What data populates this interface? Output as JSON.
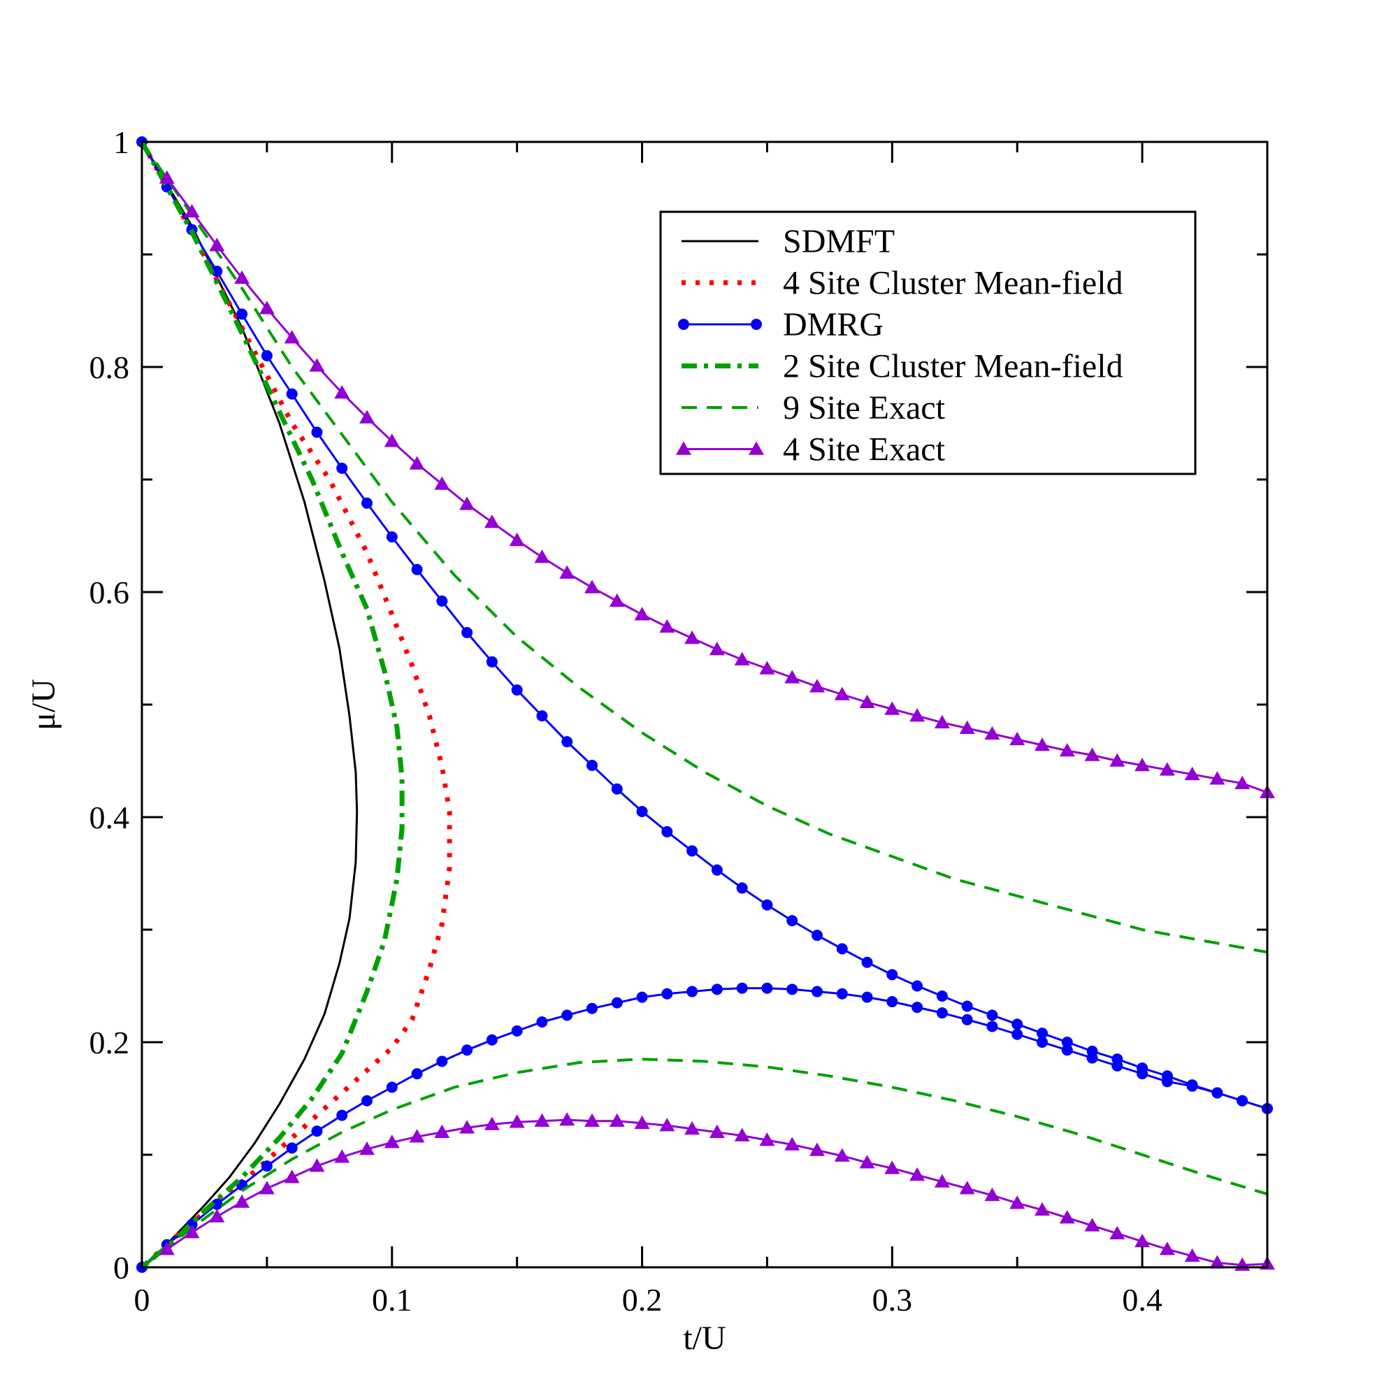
{
  "chart_data": {
    "type": "line",
    "title": "",
    "xlabel": "t/U",
    "ylabel": "μ/U",
    "xlim": [
      0,
      0.45
    ],
    "ylim": [
      0,
      1
    ],
    "xticks": [
      {
        "value": 0,
        "label": "0"
      },
      {
        "value": 0.1,
        "label": "0.1"
      },
      {
        "value": 0.2,
        "label": "0.2"
      },
      {
        "value": 0.3,
        "label": "0.3"
      },
      {
        "value": 0.4,
        "label": "0.4"
      }
    ],
    "yticks": [
      {
        "value": 0,
        "label": "0"
      },
      {
        "value": 0.2,
        "label": "0.2"
      },
      {
        "value": 0.4,
        "label": "0.4"
      },
      {
        "value": 0.6,
        "label": "0.6"
      },
      {
        "value": 0.8,
        "label": "0.8"
      },
      {
        "value": 1,
        "label": "1"
      }
    ],
    "grid": false,
    "legend_position": "top-right",
    "series": [
      {
        "name": "SDMFT",
        "style": "solid",
        "color": "#000000",
        "marker": "none",
        "branches": [
          {
            "x": [
              0,
              0.02,
              0.04,
              0.055,
              0.065,
              0.073,
              0.079,
              0.083,
              0.0855,
              0.086,
              0.0855,
              0.083,
              0.079,
              0.073,
              0.065,
              0.055,
              0.045,
              0.035,
              0.025,
              0.015,
              0.008,
              0
            ],
            "y": [
              1,
              0.925,
              0.835,
              0.75,
              0.68,
              0.61,
              0.55,
              0.49,
              0.44,
              0.405,
              0.36,
              0.31,
              0.27,
              0.225,
              0.185,
              0.145,
              0.11,
              0.08,
              0.055,
              0.032,
              0.016,
              0
            ]
          }
        ]
      },
      {
        "name": "4 Site Cluster Mean-field",
        "style": "dotted",
        "color": "#ff0000",
        "marker": "none",
        "branches": [
          {
            "x": [
              0,
              0.02,
              0.04,
              0.06,
              0.075,
              0.09,
              0.1,
              0.108,
              0.115,
              0.12,
              0.123,
              0.123,
              0.12,
              0.115,
              0.108,
              0.1,
              0.09,
              0.075,
              0.06,
              0.045,
              0.03,
              0.015,
              0
            ],
            "y": [
              1,
              0.92,
              0.835,
              0.75,
              0.7,
              0.635,
              0.58,
              0.535,
              0.49,
              0.445,
              0.405,
              0.355,
              0.305,
              0.265,
              0.22,
              0.195,
              0.175,
              0.145,
              0.115,
              0.085,
              0.058,
              0.03,
              0
            ]
          }
        ]
      },
      {
        "name": "DMRG",
        "style": "solid",
        "color": "#0000ff",
        "marker": "circle",
        "branches": [
          {
            "x": [
              0,
              0.01,
              0.02,
              0.03,
              0.04,
              0.05,
              0.06,
              0.07,
              0.08,
              0.09,
              0.1,
              0.11,
              0.12,
              0.13,
              0.14,
              0.15,
              0.16,
              0.17,
              0.18,
              0.19,
              0.2,
              0.21,
              0.22,
              0.23,
              0.24,
              0.25,
              0.26,
              0.27,
              0.28,
              0.29,
              0.3,
              0.31,
              0.32,
              0.33,
              0.34,
              0.35,
              0.36,
              0.37,
              0.38,
              0.39,
              0.4,
              0.41,
              0.42,
              0.43,
              0.44,
              0.45
            ],
            "y": [
              1,
              0.96,
              0.922,
              0.885,
              0.847,
              0.81,
              0.776,
              0.742,
              0.71,
              0.679,
              0.649,
              0.62,
              0.592,
              0.564,
              0.538,
              0.513,
              0.49,
              0.467,
              0.446,
              0.425,
              0.405,
              0.387,
              0.37,
              0.353,
              0.337,
              0.322,
              0.308,
              0.295,
              0.283,
              0.271,
              0.26,
              0.25,
              0.241,
              0.232,
              0.224,
              0.216,
              0.208,
              0.2,
              0.192,
              0.185,
              0.177,
              0.17,
              0.162,
              0.155,
              0.148,
              0.141
            ]
          },
          {
            "x": [
              0,
              0.01,
              0.02,
              0.03,
              0.04,
              0.05,
              0.06,
              0.07,
              0.08,
              0.09,
              0.1,
              0.11,
              0.12,
              0.13,
              0.14,
              0.15,
              0.16,
              0.17,
              0.18,
              0.19,
              0.2,
              0.21,
              0.22,
              0.23,
              0.24,
              0.25,
              0.26,
              0.27,
              0.28,
              0.29,
              0.3,
              0.31,
              0.32,
              0.33,
              0.34,
              0.35,
              0.36,
              0.37,
              0.38,
              0.39,
              0.4,
              0.41,
              0.42,
              0.43,
              0.44,
              0.45
            ],
            "y": [
              0,
              0.02,
              0.038,
              0.056,
              0.073,
              0.09,
              0.106,
              0.121,
              0.135,
              0.148,
              0.16,
              0.172,
              0.183,
              0.193,
              0.202,
              0.21,
              0.218,
              0.224,
              0.23,
              0.235,
              0.24,
              0.243,
              0.245,
              0.247,
              0.248,
              0.248,
              0.247,
              0.245,
              0.243,
              0.24,
              0.236,
              0.231,
              0.226,
              0.22,
              0.214,
              0.207,
              0.2,
              0.193,
              0.186,
              0.179,
              0.172,
              0.165,
              0.161,
              0.155,
              0.148,
              0.141
            ]
          }
        ]
      },
      {
        "name": "2 Site Cluster Mean-field",
        "style": "dash-dot",
        "color": "#00a000",
        "marker": "none",
        "branches": [
          {
            "x": [
              0,
              0.02,
              0.04,
              0.055,
              0.068,
              0.08,
              0.09,
              0.097,
              0.102,
              0.104,
              0.104,
              0.102,
              0.097,
              0.09,
              0.08,
              0.068,
              0.055,
              0.04,
              0.025,
              0.012,
              0
            ],
            "y": [
              1,
              0.92,
              0.83,
              0.76,
              0.7,
              0.635,
              0.585,
              0.53,
              0.48,
              0.435,
              0.39,
              0.345,
              0.29,
              0.245,
              0.19,
              0.15,
              0.115,
              0.08,
              0.05,
              0.022,
              0
            ]
          }
        ]
      },
      {
        "name": "9 Site Exact",
        "style": "dashed",
        "color": "#00a000",
        "marker": "none",
        "branches": [
          {
            "x": [
              0,
              0.02,
              0.04,
              0.06,
              0.08,
              0.1,
              0.125,
              0.15,
              0.175,
              0.2,
              0.225,
              0.25,
              0.275,
              0.3,
              0.325,
              0.35,
              0.375,
              0.4,
              0.425,
              0.45
            ],
            "y": [
              1,
              0.935,
              0.87,
              0.8,
              0.74,
              0.68,
              0.615,
              0.56,
              0.515,
              0.475,
              0.44,
              0.41,
              0.385,
              0.365,
              0.345,
              0.33,
              0.315,
              0.3,
              0.29,
              0.28
            ]
          },
          {
            "x": [
              0,
              0.02,
              0.04,
              0.06,
              0.08,
              0.1,
              0.125,
              0.15,
              0.175,
              0.2,
              0.225,
              0.25,
              0.275,
              0.3,
              0.325,
              0.35,
              0.375,
              0.4,
              0.425,
              0.45
            ],
            "y": [
              0,
              0.035,
              0.068,
              0.096,
              0.12,
              0.14,
              0.16,
              0.173,
              0.182,
              0.185,
              0.183,
              0.178,
              0.17,
              0.16,
              0.148,
              0.134,
              0.118,
              0.1,
              0.082,
              0.065
            ]
          }
        ]
      },
      {
        "name": "4 Site Exact",
        "style": "solid",
        "color": "#9400d3",
        "marker": "triangle",
        "branches": [
          {
            "x": [
              0.01,
              0.02,
              0.03,
              0.04,
              0.05,
              0.06,
              0.07,
              0.08,
              0.09,
              0.1,
              0.11,
              0.12,
              0.13,
              0.14,
              0.15,
              0.16,
              0.17,
              0.18,
              0.19,
              0.2,
              0.21,
              0.22,
              0.23,
              0.24,
              0.25,
              0.26,
              0.27,
              0.28,
              0.29,
              0.3,
              0.31,
              0.32,
              0.33,
              0.34,
              0.35,
              0.36,
              0.37,
              0.38,
              0.39,
              0.4,
              0.41,
              0.42,
              0.43,
              0.44,
              0.45
            ],
            "y": [
              0.968,
              0.938,
              0.908,
              0.879,
              0.852,
              0.826,
              0.801,
              0.777,
              0.755,
              0.734,
              0.714,
              0.696,
              0.678,
              0.662,
              0.646,
              0.631,
              0.617,
              0.604,
              0.592,
              0.58,
              0.569,
              0.559,
              0.549,
              0.54,
              0.532,
              0.524,
              0.516,
              0.509,
              0.502,
              0.496,
              0.49,
              0.484,
              0.479,
              0.474,
              0.469,
              0.464,
              0.459,
              0.455,
              0.45,
              0.446,
              0.442,
              0.438,
              0.434,
              0.43,
              0.422
            ]
          },
          {
            "x": [
              0.01,
              0.02,
              0.03,
              0.04,
              0.05,
              0.06,
              0.07,
              0.08,
              0.09,
              0.1,
              0.11,
              0.12,
              0.13,
              0.14,
              0.15,
              0.16,
              0.17,
              0.18,
              0.19,
              0.2,
              0.21,
              0.22,
              0.23,
              0.24,
              0.25,
              0.26,
              0.27,
              0.28,
              0.29,
              0.3,
              0.31,
              0.32,
              0.33,
              0.34,
              0.35,
              0.36,
              0.37,
              0.38,
              0.39,
              0.4,
              0.41,
              0.42,
              0.43,
              0.44,
              0.45
            ],
            "y": [
              0.016,
              0.031,
              0.045,
              0.058,
              0.07,
              0.08,
              0.09,
              0.098,
              0.105,
              0.111,
              0.116,
              0.12,
              0.124,
              0.127,
              0.129,
              0.13,
              0.131,
              0.13,
              0.13,
              0.128,
              0.126,
              0.123,
              0.12,
              0.117,
              0.113,
              0.109,
              0.104,
              0.099,
              0.093,
              0.088,
              0.082,
              0.076,
              0.07,
              0.064,
              0.057,
              0.051,
              0.044,
              0.037,
              0.03,
              0.023,
              0.016,
              0.01,
              0.004,
              0.002,
              0.003
            ]
          }
        ]
      }
    ]
  }
}
